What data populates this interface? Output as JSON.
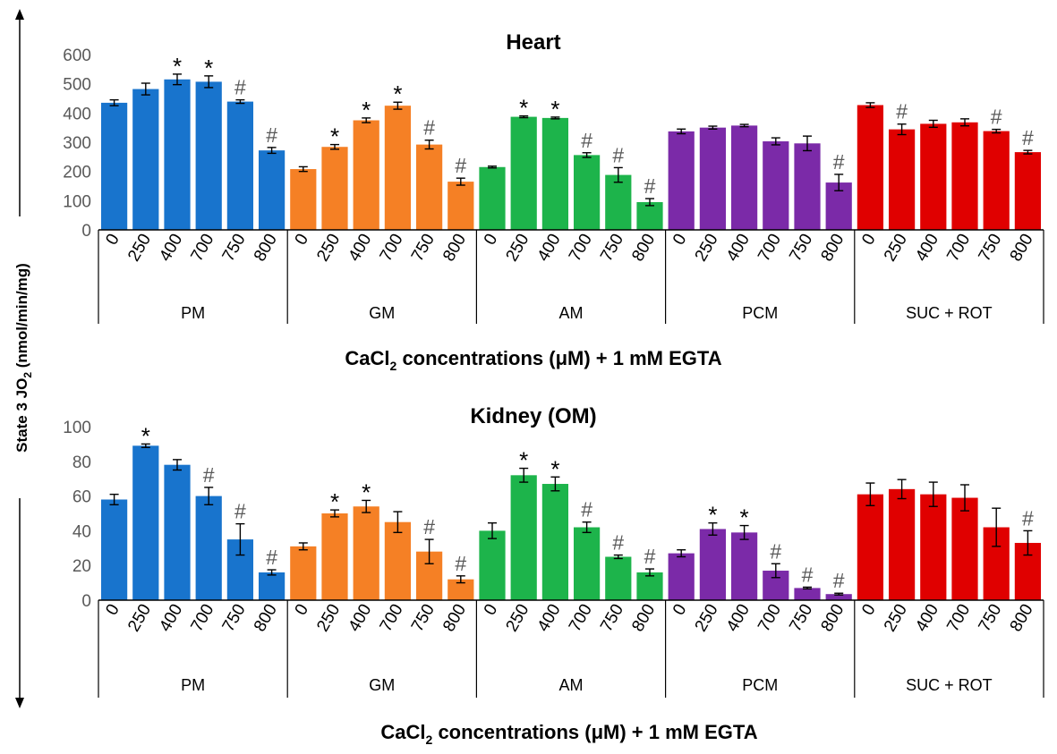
{
  "chart_data": {
    "ylabel_main": "State 3 JO",
    "ylabel_sub": "2",
    "ylabel_units": " (nmol/min/mg)",
    "charts": [
      {
        "type": "bar",
        "title": "Heart",
        "ylim": [
          0,
          600
        ],
        "yticks": [
          "0",
          "100",
          "200",
          "300",
          "400",
          "500",
          "600"
        ],
        "xlabel_pre": "CaCl",
        "xlabel_sub": "2",
        "xlabel_post": " concentrations (μM) + 1 mM EGTA",
        "categories": [
          "0",
          "250",
          "400",
          "700",
          "750",
          "800"
        ],
        "groups": [
          {
            "name": "PM",
            "color": "#1874CD",
            "values": [
              435,
              482,
              515,
              507,
              439,
              272
            ],
            "errors": [
              10,
              20,
              18,
              20,
              6,
              10
            ],
            "marks": [
              "",
              "",
              "*",
              "*",
              "#",
              "#"
            ]
          },
          {
            "name": "GM",
            "color": "#F58025",
            "values": [
              208,
              284,
              375,
              425,
              292,
              165
            ],
            "errors": [
              8,
              8,
              8,
              12,
              15,
              12
            ],
            "marks": [
              "",
              "*",
              "*",
              "*",
              "#",
              "#"
            ]
          },
          {
            "name": "AM",
            "color": "#1DB44B",
            "values": [
              215,
              387,
              383,
              256,
              188,
              95
            ],
            "errors": [
              3,
              3,
              3,
              8,
              25,
              12
            ],
            "marks": [
              "",
              "*",
              "*",
              "#",
              "#",
              "#"
            ]
          },
          {
            "name": "PCM",
            "color": "#7B2AA8",
            "values": [
              337,
              350,
              357,
              303,
              296,
              162
            ],
            "errors": [
              8,
              5,
              4,
              12,
              25,
              28
            ],
            "marks": [
              "",
              "",
              "",
              "",
              "",
              "#"
            ]
          },
          {
            "name": "SUC + ROT",
            "color": "#E00000",
            "values": [
              427,
              344,
              363,
              368,
              338,
              266
            ],
            "errors": [
              8,
              18,
              12,
              12,
              6,
              6
            ],
            "marks": [
              "",
              "#",
              "",
              "",
              "#",
              "#"
            ]
          }
        ]
      },
      {
        "type": "bar",
        "title": "Kidney (OM)",
        "ylim": [
          0,
          100
        ],
        "yticks": [
          "0",
          "20",
          "40",
          "60",
          "80",
          "100"
        ],
        "xlabel_pre": "CaCl",
        "xlabel_sub": "2",
        "xlabel_post": " concentrations (μM) + 1 mM EGTA",
        "categories": [
          "0",
          "250",
          "400",
          "700",
          "750",
          "800"
        ],
        "groups": [
          {
            "name": "PM",
            "color": "#1874CD",
            "values": [
              58,
              89,
              78,
              60,
              35,
              16
            ],
            "errors": [
              3,
              1,
              3,
              5,
              9,
              1.5
            ],
            "marks": [
              "",
              "*",
              "",
              "#",
              "#",
              "#"
            ]
          },
          {
            "name": "GM",
            "color": "#F58025",
            "values": [
              31,
              50,
              54,
              45,
              28,
              12
            ],
            "errors": [
              2,
              2,
              3.5,
              6,
              7,
              2
            ],
            "marks": [
              "",
              "*",
              "*",
              "",
              "#",
              "#"
            ]
          },
          {
            "name": "AM",
            "color": "#1DB44B",
            "values": [
              40,
              72,
              67,
              42,
              25,
              16
            ],
            "errors": [
              4.5,
              4,
              4,
              3,
              1,
              2
            ],
            "marks": [
              "",
              "*",
              "*",
              "#",
              "#",
              "#"
            ]
          },
          {
            "name": "PCM",
            "color": "#7B2AA8",
            "values": [
              27,
              41,
              39,
              17,
              7,
              3.5
            ],
            "errors": [
              2,
              3.5,
              4,
              4,
              0.5,
              0.5
            ],
            "marks": [
              "",
              "*",
              "*",
              "#",
              "#",
              "#"
            ]
          },
          {
            "name": "SUC + ROT",
            "color": "#E00000",
            "values": [
              61,
              64,
              61,
              59,
              42,
              33
            ],
            "errors": [
              6.5,
              5.5,
              7,
              7.5,
              11,
              7
            ],
            "marks": [
              "",
              "",
              "",
              "",
              "",
              "#"
            ]
          }
        ]
      }
    ]
  }
}
